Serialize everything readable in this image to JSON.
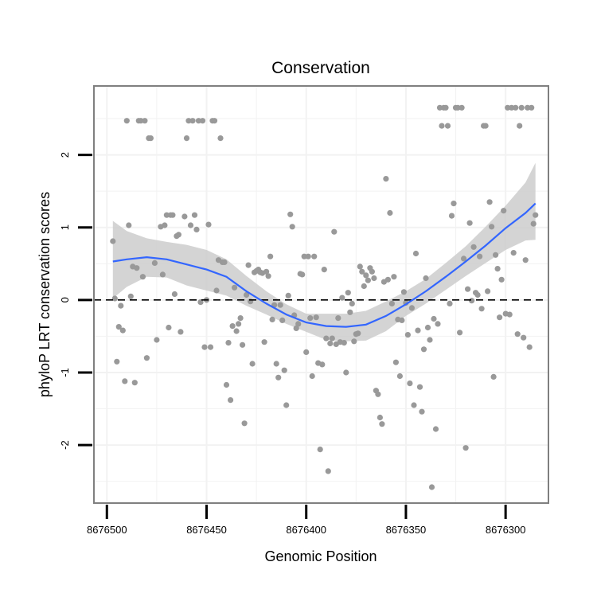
{
  "chart_data": {
    "type": "scatter",
    "title": "Conservation",
    "xlabel": "Genomic Position",
    "ylabel": "phyloP LRT conservation scores",
    "x_reversed": true,
    "xlim": [
      8676278.5,
      8676506.5
    ],
    "ylim": [
      -2.8,
      2.95
    ],
    "x_ticks": [
      8676500,
      8676450,
      8676400,
      8676350,
      8676300
    ],
    "x_tick_labels": [
      "8676500",
      "8676450",
      "8676400",
      "8676350",
      "8676300"
    ],
    "y_ticks": [
      -2,
      -1,
      0,
      1,
      2
    ],
    "y_tick_labels": [
      "-2",
      "-1",
      "0",
      "1",
      "2"
    ],
    "grid": true,
    "reference_line": {
      "y": 0,
      "style": "dashed",
      "color": "#000000"
    },
    "colors": {
      "points": "#999999",
      "smooth": "#3366ff",
      "band": "#cccccc",
      "panel_border": "#7f7f7f",
      "grid": "#f2f2f2"
    },
    "points": [
      [
        8676497,
        0.81
      ],
      [
        8676496,
        0.02
      ],
      [
        8676495,
        -0.85
      ],
      [
        8676494,
        -0.37
      ],
      [
        8676493,
        -0.08
      ],
      [
        8676492,
        -0.42
      ],
      [
        8676491,
        -1.12
      ],
      [
        8676490,
        2.47
      ],
      [
        8676489,
        1.03
      ],
      [
        8676488,
        0.05
      ],
      [
        8676487,
        0.46
      ],
      [
        8676486,
        -1.14
      ],
      [
        8676485,
        0.44
      ],
      [
        8676484,
        2.47
      ],
      [
        8676483,
        2.47
      ],
      [
        8676482,
        0.32
      ],
      [
        8676481,
        2.47
      ],
      [
        8676480,
        -0.8
      ],
      [
        8676479,
        2.23
      ],
      [
        8676478,
        2.23
      ],
      [
        8676476,
        0.51
      ],
      [
        8676475,
        -0.55
      ],
      [
        8676473,
        1.01
      ],
      [
        8676472,
        0.35
      ],
      [
        8676471,
        1.03
      ],
      [
        8676470,
        1.17
      ],
      [
        8676469,
        -0.38
      ],
      [
        8676468,
        1.17
      ],
      [
        8676467,
        1.17
      ],
      [
        8676466,
        0.08
      ],
      [
        8676465,
        0.88
      ],
      [
        8676464,
        0.9
      ],
      [
        8676463,
        -0.44
      ],
      [
        8676461,
        1.15
      ],
      [
        8676460,
        2.23
      ],
      [
        8676459,
        2.47
      ],
      [
        8676458,
        1.03
      ],
      [
        8676457,
        2.47
      ],
      [
        8676456,
        1.17
      ],
      [
        8676455,
        0.97
      ],
      [
        8676454,
        2.47
      ],
      [
        8676453,
        -0.03
      ],
      [
        8676452,
        2.47
      ],
      [
        8676451,
        -0.65
      ],
      [
        8676450,
        0.0
      ],
      [
        8676449,
        1.04
      ],
      [
        8676448,
        -0.65
      ],
      [
        8676447,
        2.47
      ],
      [
        8676446,
        2.47
      ],
      [
        8676445,
        0.13
      ],
      [
        8676444,
        0.55
      ],
      [
        8676443,
        2.23
      ],
      [
        8676442,
        0.52
      ],
      [
        8676441,
        0.52
      ],
      [
        8676440,
        -1.17
      ],
      [
        8676439,
        -0.59
      ],
      [
        8676438,
        -1.38
      ],
      [
        8676437,
        -0.36
      ],
      [
        8676436,
        0.17
      ],
      [
        8676435,
        -0.43
      ],
      [
        8676434,
        -0.33
      ],
      [
        8676433,
        -0.25
      ],
      [
        8676432,
        -0.62
      ],
      [
        8676431,
        -1.7
      ],
      [
        8676430,
        0.07
      ],
      [
        8676429,
        0.48
      ],
      [
        8676428,
        -0.02
      ],
      [
        8676427,
        -0.88
      ],
      [
        8676426,
        0.38
      ],
      [
        8676425,
        0.4
      ],
      [
        8676424,
        0.42
      ],
      [
        8676423,
        0.38
      ],
      [
        8676422,
        0.37
      ],
      [
        8676421,
        -0.58
      ],
      [
        8676420,
        0.39
      ],
      [
        8676419,
        0.33
      ],
      [
        8676418,
        0.6
      ],
      [
        8676417,
        -0.27
      ],
      [
        8676416,
        -0.07
      ],
      [
        8676415,
        -0.88
      ],
      [
        8676414,
        -1.07
      ],
      [
        8676413,
        -0.07
      ],
      [
        8676412,
        -0.28
      ],
      [
        8676411,
        -0.97
      ],
      [
        8676410,
        -1.45
      ],
      [
        8676409,
        0.06
      ],
      [
        8676408,
        1.18
      ],
      [
        8676407,
        1.01
      ],
      [
        8676406,
        -0.21
      ],
      [
        8676405,
        -0.39
      ],
      [
        8676404,
        -0.33
      ],
      [
        8676403,
        0.36
      ],
      [
        8676402,
        0.35
      ],
      [
        8676401,
        0.6
      ],
      [
        8676400,
        -0.72
      ],
      [
        8676399,
        0.6
      ],
      [
        8676398,
        -0.25
      ],
      [
        8676397,
        -1.05
      ],
      [
        8676396,
        0.6
      ],
      [
        8676395,
        -0.24
      ],
      [
        8676394,
        -0.87
      ],
      [
        8676393,
        -2.06
      ],
      [
        8676392,
        -0.89
      ],
      [
        8676391,
        0.42
      ],
      [
        8676390,
        -0.53
      ],
      [
        8676389,
        -2.36
      ],
      [
        8676388,
        -0.6
      ],
      [
        8676387,
        -0.53
      ],
      [
        8676386,
        0.94
      ],
      [
        8676385,
        -0.61
      ],
      [
        8676384,
        -0.25
      ],
      [
        8676383,
        -0.58
      ],
      [
        8676382,
        0.03
      ],
      [
        8676381,
        -0.59
      ],
      [
        8676380,
        -1.0
      ],
      [
        8676379,
        0.1
      ],
      [
        8676378,
        -0.17
      ],
      [
        8676377,
        -0.05
      ],
      [
        8676376,
        -0.57
      ],
      [
        8676375,
        -0.47
      ],
      [
        8676374,
        -0.46
      ],
      [
        8676373,
        0.46
      ],
      [
        8676372,
        0.39
      ],
      [
        8676371,
        0.19
      ],
      [
        8676370,
        0.34
      ],
      [
        8676369,
        0.27
      ],
      [
        8676368,
        0.44
      ],
      [
        8676367,
        0.39
      ],
      [
        8676366,
        0.3
      ],
      [
        8676365,
        -1.25
      ],
      [
        8676364,
        -1.3
      ],
      [
        8676363,
        -1.62
      ],
      [
        8676362,
        -1.71
      ],
      [
        8676361,
        0.25
      ],
      [
        8676360,
        1.67
      ],
      [
        8676359,
        0.28
      ],
      [
        8676358,
        1.2
      ],
      [
        8676357,
        -0.05
      ],
      [
        8676356,
        0.32
      ],
      [
        8676355,
        -0.86
      ],
      [
        8676354,
        -0.27
      ],
      [
        8676353,
        -1.05
      ],
      [
        8676352,
        -0.28
      ],
      [
        8676351,
        0.11
      ],
      [
        8676350,
        -0.04
      ],
      [
        8676349,
        -0.48
      ],
      [
        8676348,
        -1.15
      ],
      [
        8676347,
        -0.11
      ],
      [
        8676346,
        -1.45
      ],
      [
        8676345,
        0.64
      ],
      [
        8676344,
        -0.42
      ],
      [
        8676343,
        -1.2
      ],
      [
        8676342,
        -1.54
      ],
      [
        8676341,
        -0.68
      ],
      [
        8676340,
        0.3
      ],
      [
        8676339,
        -0.38
      ],
      [
        8676338,
        -0.55
      ],
      [
        8676337,
        -2.58
      ],
      [
        8676336,
        -0.26
      ],
      [
        8676335,
        -1.78
      ],
      [
        8676334,
        -0.33
      ],
      [
        8676333,
        2.65
      ],
      [
        8676332,
        2.4
      ],
      [
        8676331,
        2.65
      ],
      [
        8676330,
        2.65
      ],
      [
        8676329,
        2.4
      ],
      [
        8676328,
        -0.05
      ],
      [
        8676327,
        1.16
      ],
      [
        8676326,
        1.33
      ],
      [
        8676325,
        2.65
      ],
      [
        8676324,
        2.65
      ],
      [
        8676323,
        -0.45
      ],
      [
        8676322,
        2.65
      ],
      [
        8676321,
        0.57
      ],
      [
        8676320,
        -2.04
      ],
      [
        8676319,
        0.15
      ],
      [
        8676318,
        1.06
      ],
      [
        8676317,
        -0.01
      ],
      [
        8676316,
        0.73
      ],
      [
        8676315,
        0.1
      ],
      [
        8676314,
        0.07
      ],
      [
        8676313,
        0.6
      ],
      [
        8676312,
        -0.12
      ],
      [
        8676311,
        2.4
      ],
      [
        8676310,
        2.4
      ],
      [
        8676309,
        0.12
      ],
      [
        8676308,
        1.35
      ],
      [
        8676307,
        1.01
      ],
      [
        8676306,
        -1.06
      ],
      [
        8676305,
        0.62
      ],
      [
        8676304,
        0.43
      ],
      [
        8676303,
        -0.24
      ],
      [
        8676302,
        0.28
      ],
      [
        8676301,
        1.23
      ],
      [
        8676300,
        -0.19
      ],
      [
        8676299,
        2.65
      ],
      [
        8676298,
        -0.2
      ],
      [
        8676297,
        2.65
      ],
      [
        8676296,
        0.65
      ],
      [
        8676295,
        2.65
      ],
      [
        8676294,
        -0.47
      ],
      [
        8676293,
        2.4
      ],
      [
        8676292,
        2.65
      ],
      [
        8676291,
        -0.52
      ],
      [
        8676290,
        0.55
      ],
      [
        8676289,
        2.65
      ],
      [
        8676288,
        -0.65
      ],
      [
        8676287,
        2.65
      ],
      [
        8676286,
        1.05
      ],
      [
        8676285,
        1.17
      ]
    ],
    "smooth": {
      "x": [
        8676497,
        8676490,
        8676480,
        8676470,
        8676460,
        8676450,
        8676440,
        8676430,
        8676420,
        8676410,
        8676400,
        8676390,
        8676380,
        8676370,
        8676360,
        8676350,
        8676340,
        8676330,
        8676320,
        8676310,
        8676300,
        8676290,
        8676285
      ],
      "fit": [
        0.53,
        0.56,
        0.59,
        0.56,
        0.49,
        0.42,
        0.32,
        0.12,
        -0.05,
        -0.2,
        -0.31,
        -0.36,
        -0.37,
        -0.34,
        -0.22,
        -0.06,
        0.12,
        0.32,
        0.53,
        0.75,
        0.99,
        1.2,
        1.33
      ],
      "lower": [
        0.02,
        0.18,
        0.32,
        0.31,
        0.2,
        0.13,
        0.06,
        -0.08,
        -0.2,
        -0.33,
        -0.44,
        -0.55,
        -0.57,
        -0.56,
        -0.43,
        -0.22,
        -0.05,
        0.14,
        0.33,
        0.51,
        0.69,
        0.82,
        0.83
      ],
      "upper": [
        1.09,
        0.95,
        0.85,
        0.8,
        0.76,
        0.69,
        0.56,
        0.33,
        0.12,
        -0.06,
        -0.19,
        -0.19,
        -0.19,
        -0.15,
        -0.02,
        0.12,
        0.29,
        0.51,
        0.74,
        1.01,
        1.3,
        1.62,
        1.89
      ]
    }
  }
}
